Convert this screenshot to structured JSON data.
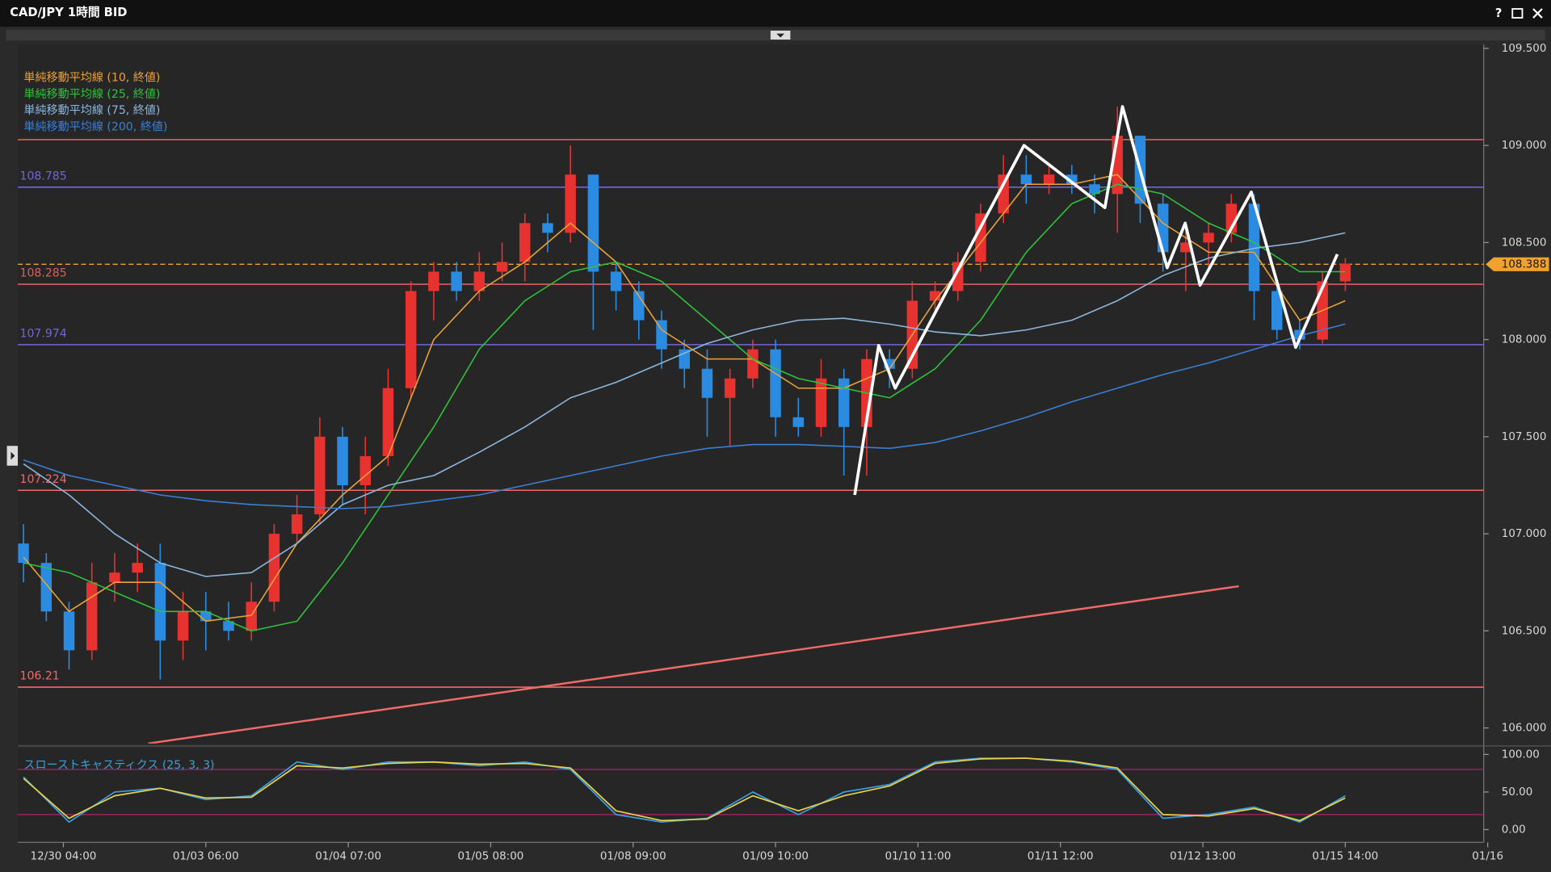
{
  "chart_data": {
    "type": "candlestick",
    "title": "CAD/JPY 1時間 BID",
    "help_button": "?",
    "up_color": "#e8322f",
    "down_color": "#2a8be0",
    "x": [
      -7,
      -3,
      1,
      5,
      9,
      13,
      17,
      21,
      25,
      29,
      33,
      37,
      41,
      45,
      49,
      53,
      57,
      61,
      65,
      69,
      73,
      77,
      81,
      85,
      89,
      93,
      97,
      101,
      105,
      109,
      113,
      117,
      121,
      125,
      129,
      133,
      137,
      141,
      145,
      149,
      153,
      157,
      161,
      165,
      169,
      173,
      177,
      181,
      185,
      189,
      193,
      197,
      201,
      205,
      209,
      213,
      217,
      221,
      225
    ],
    "open": [
      106.95,
      106.85,
      106.6,
      106.4,
      106.75,
      106.8,
      106.85,
      106.45,
      106.6,
      106.55,
      106.5,
      106.65,
      107.0,
      107.1,
      107.5,
      107.25,
      107.4,
      107.75,
      108.25,
      108.35,
      108.25,
      108.35,
      108.4,
      108.6,
      108.55,
      108.85,
      108.35,
      108.25,
      108.1,
      107.95,
      107.85,
      107.7,
      107.8,
      107.95,
      107.6,
      107.55,
      107.8,
      107.55,
      107.9,
      107.85,
      108.2,
      108.25,
      108.4,
      108.65,
      108.85,
      108.8,
      108.85,
      108.8,
      108.75,
      109.05,
      108.7,
      108.45,
      108.5,
      108.55,
      108.7,
      108.25,
      108.05,
      108.0,
      108.3
    ],
    "high": [
      107.05,
      106.9,
      106.65,
      106.85,
      106.9,
      106.95,
      106.95,
      106.7,
      106.7,
      106.65,
      106.75,
      107.05,
      107.2,
      107.6,
      107.55,
      107.5,
      107.85,
      108.3,
      108.4,
      108.4,
      108.45,
      108.5,
      108.65,
      108.65,
      109.0,
      108.85,
      108.4,
      108.3,
      108.15,
      108.0,
      107.95,
      107.85,
      108.0,
      108.0,
      107.7,
      107.9,
      107.85,
      107.95,
      107.95,
      108.3,
      108.3,
      108.45,
      108.7,
      108.95,
      108.95,
      108.9,
      108.9,
      108.85,
      109.2,
      109.05,
      108.75,
      108.6,
      108.6,
      108.75,
      108.75,
      108.3,
      108.1,
      108.35,
      108.42
    ],
    "low": [
      106.75,
      106.55,
      106.3,
      106.35,
      106.65,
      106.7,
      106.25,
      106.35,
      106.4,
      106.45,
      106.45,
      106.6,
      106.95,
      107.05,
      107.15,
      107.1,
      107.35,
      107.7,
      108.1,
      108.2,
      108.2,
      108.3,
      108.3,
      108.45,
      108.5,
      108.05,
      108.15,
      108.0,
      107.85,
      107.75,
      107.5,
      107.45,
      107.75,
      107.5,
      107.5,
      107.5,
      107.3,
      107.3,
      107.75,
      107.8,
      108.15,
      108.2,
      108.35,
      108.6,
      108.7,
      108.75,
      108.75,
      108.65,
      108.55,
      108.6,
      108.35,
      108.25,
      108.35,
      108.5,
      108.1,
      108.0,
      107.95,
      107.98,
      108.25
    ],
    "close": [
      106.85,
      106.6,
      106.4,
      106.75,
      106.8,
      106.85,
      106.45,
      106.6,
      106.55,
      106.5,
      106.65,
      107.0,
      107.1,
      107.5,
      107.25,
      107.4,
      107.75,
      108.25,
      108.35,
      108.25,
      108.35,
      108.4,
      108.6,
      108.55,
      108.85,
      108.35,
      108.25,
      108.1,
      107.95,
      107.85,
      107.7,
      107.8,
      107.95,
      107.6,
      107.55,
      107.8,
      107.55,
      107.9,
      107.85,
      108.2,
      108.25,
      108.4,
      108.65,
      108.85,
      108.8,
      108.85,
      108.8,
      108.75,
      109.05,
      108.7,
      108.45,
      108.5,
      108.55,
      108.7,
      108.25,
      108.05,
      108.0,
      108.3,
      108.39
    ],
    "xlim": [
      -8,
      249.3
    ],
    "xticks": [
      {
        "value": 0,
        "label": "12/30 04:00"
      },
      {
        "value": 25,
        "label": "01/03 06:00"
      },
      {
        "value": 50,
        "label": "01/04 07:00"
      },
      {
        "value": 75,
        "label": "01/05 08:00"
      },
      {
        "value": 100,
        "label": "01/08 09:00"
      },
      {
        "value": 125,
        "label": "01/09 10:00"
      },
      {
        "value": 150,
        "label": "01/10 11:00"
      },
      {
        "value": 175,
        "label": "01/11 12:00"
      },
      {
        "value": 200,
        "label": "01/12 13:00"
      },
      {
        "value": 225,
        "label": "01/15 14:00"
      },
      {
        "value": 250,
        "label": "01/16"
      }
    ],
    "ylim": [
      105.92,
      109.52
    ],
    "yticks": [
      {
        "value": 106,
        "label": "106.000"
      },
      {
        "value": 106.5,
        "label": "106.500"
      },
      {
        "value": 107,
        "label": "107.000"
      },
      {
        "value": 107.5,
        "label": "107.500"
      },
      {
        "value": 108,
        "label": "108.000"
      },
      {
        "value": 108.5,
        "label": "108.500"
      },
      {
        "value": 109,
        "label": "109.000"
      },
      {
        "value": 109.5,
        "label": "109.500"
      }
    ],
    "moving_averages": {
      "x": [
        -7,
        1,
        9,
        17,
        25,
        33,
        41,
        49,
        57,
        65,
        73,
        81,
        89,
        97,
        105,
        113,
        121,
        129,
        137,
        145,
        153,
        161,
        169,
        177,
        185,
        193,
        201,
        209,
        217,
        225
      ],
      "series": [
        {
          "name": "単純移動平均線 (10, 終値)",
          "color": "#e9a13b",
          "values": [
            106.88,
            106.6,
            106.75,
            106.75,
            106.55,
            106.58,
            106.95,
            107.2,
            107.4,
            108.0,
            108.25,
            108.4,
            108.6,
            108.4,
            108.05,
            107.9,
            107.9,
            107.75,
            107.75,
            107.85,
            108.2,
            108.5,
            108.8,
            108.8,
            108.85,
            108.6,
            108.45,
            108.45,
            108.1,
            108.2
          ]
        },
        {
          "name": "単純移動平均線 (25, 終値)",
          "color": "#2fc23a",
          "values": [
            106.85,
            106.8,
            106.7,
            106.6,
            106.6,
            106.5,
            106.55,
            106.85,
            107.2,
            107.55,
            107.95,
            108.2,
            108.35,
            108.4,
            108.3,
            108.1,
            107.9,
            107.8,
            107.75,
            107.7,
            107.85,
            108.1,
            108.45,
            108.7,
            108.8,
            108.75,
            108.6,
            108.5,
            108.35,
            108.35
          ]
        },
        {
          "name": "単純移動平均線 (75, 終値)",
          "color": "#8cb6dc",
          "values": [
            107.36,
            107.2,
            107.0,
            106.85,
            106.78,
            106.8,
            106.95,
            107.15,
            107.25,
            107.3,
            107.42,
            107.55,
            107.7,
            107.78,
            107.88,
            107.98,
            108.05,
            108.1,
            108.11,
            108.08,
            108.04,
            108.02,
            108.05,
            108.1,
            108.2,
            108.33,
            108.42,
            108.47,
            108.5,
            108.55
          ]
        },
        {
          "name": "単純移動平均線 (200, 終値)",
          "color": "#3b7fd4",
          "values": [
            107.38,
            107.3,
            107.25,
            107.2,
            107.17,
            107.15,
            107.14,
            107.13,
            107.14,
            107.17,
            107.2,
            107.25,
            107.3,
            107.35,
            107.4,
            107.44,
            107.46,
            107.46,
            107.45,
            107.44,
            107.47,
            107.53,
            107.6,
            107.68,
            107.75,
            107.82,
            107.88,
            107.95,
            108.02,
            108.08
          ]
        }
      ]
    },
    "levels": [
      {
        "value": 109.03,
        "color": "#d9605a",
        "show_label": false
      },
      {
        "value": 108.785,
        "color": "#6f66d8",
        "show_label": true
      },
      {
        "value": 108.285,
        "color": "#d9605a",
        "show_label": true
      },
      {
        "value": 107.974,
        "color": "#6f66d8",
        "show_label": true
      },
      {
        "value": 107.224,
        "color": "#f06a68",
        "show_label": true
      },
      {
        "value": 106.21,
        "color": "#f06a68",
        "show_label": true
      }
    ],
    "current_price": {
      "value": 108.388,
      "color": "#f0a12e"
    },
    "trendline": {
      "x": [
        14.9,
        206.3
      ],
      "values": [
        105.92,
        106.73
      ],
      "color": "#f06a68"
    },
    "zigzag": {
      "x": [
        138.9,
        143.1,
        146.0,
        168.6,
        182.8,
        185.9,
        193.75,
        196.9,
        199.5,
        208.5,
        216.3,
        223.6
      ],
      "values": [
        107.2,
        107.97,
        107.75,
        109.0,
        108.68,
        109.2,
        108.37,
        108.6,
        108.28,
        108.76,
        107.96,
        108.44
      ],
      "color": "#ffffff"
    },
    "oscillator": {
      "title": "スローストキャスティクス (25, 3, 3)",
      "title_color": "#3aa0d8",
      "ylim": [
        -17,
        108
      ],
      "yticks": [
        {
          "value": 0,
          "label": "0.00"
        },
        {
          "value": 50,
          "label": "50.00"
        },
        {
          "value": 100,
          "label": "100.00"
        }
      ],
      "levels": [
        20,
        80
      ],
      "level_color": "#b0206a",
      "series": [
        {
          "color": "#3a9ee0",
          "values": [
            70,
            10,
            50,
            55,
            40,
            45,
            90,
            80,
            90,
            90,
            85,
            90,
            80,
            20,
            10,
            15,
            50,
            20,
            50,
            60,
            90,
            95,
            95,
            90,
            80,
            15,
            20,
            30,
            10,
            45
          ]
        },
        {
          "color": "#e7d24a",
          "values": [
            68,
            15,
            45,
            55,
            42,
            43,
            85,
            82,
            88,
            90,
            87,
            88,
            82,
            25,
            12,
            14,
            45,
            25,
            45,
            58,
            88,
            94,
            95,
            91,
            82,
            20,
            18,
            28,
            12,
            42
          ]
        }
      ]
    }
  }
}
